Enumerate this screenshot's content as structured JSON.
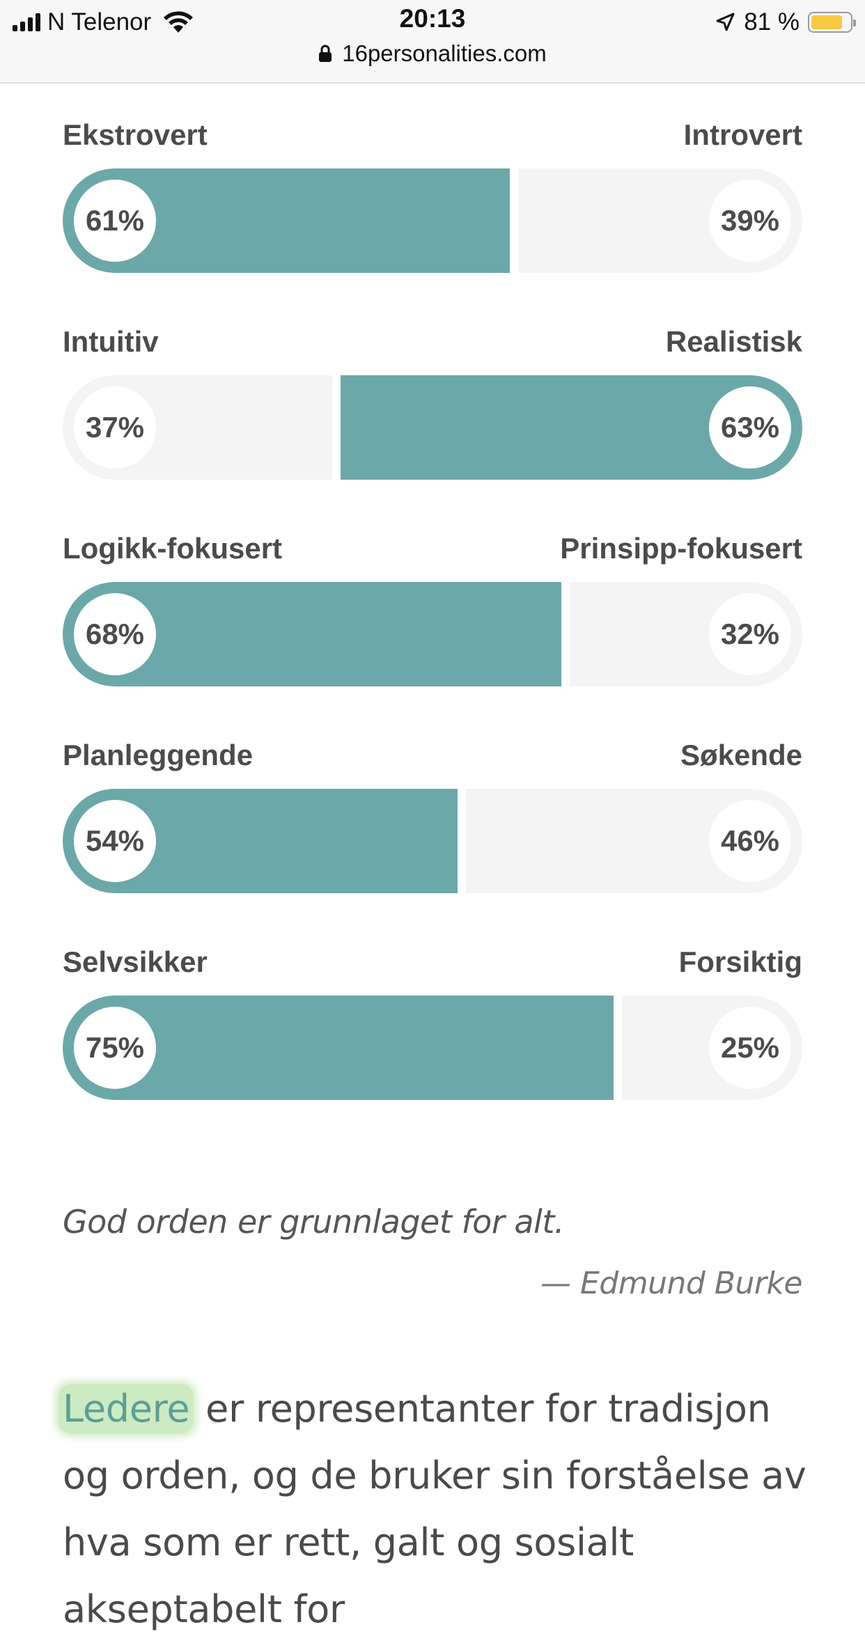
{
  "status_bar": {
    "carrier": "N Telenor",
    "time": "20:13",
    "battery_percent": "81 %",
    "battery_level": 0.81,
    "url": "16personalities.com"
  },
  "colors": {
    "accent": "#6ba8a9",
    "track": "#f4f4f4",
    "highlight": "#cdebc1"
  },
  "traits": [
    {
      "left_label": "Ekstrovert",
      "right_label": "Introvert",
      "left_pct": "61%",
      "right_pct": "39%",
      "dominant": "left",
      "left_value": 61
    },
    {
      "left_label": "Intuitiv",
      "right_label": "Realistisk",
      "left_pct": "37%",
      "right_pct": "63%",
      "dominant": "right",
      "left_value": 37
    },
    {
      "left_label": "Logikk-fokusert",
      "right_label": "Prinsipp-fokusert",
      "left_pct": "68%",
      "right_pct": "32%",
      "dominant": "left",
      "left_value": 68
    },
    {
      "left_label": "Planleggende",
      "right_label": "Søkende",
      "left_pct": "54%",
      "right_pct": "46%",
      "dominant": "left",
      "left_value": 54
    },
    {
      "left_label": "Selvsikker",
      "right_label": "Forsiktig",
      "left_pct": "75%",
      "right_pct": "25%",
      "dominant": "left",
      "left_value": 75
    }
  ],
  "quote": {
    "text": "God orden er grunnlaget for alt.",
    "author": "— Edmund Burke"
  },
  "description": {
    "highlight": "Ledere",
    "rest": " er representanter for tradisjon og orden, og de bruker sin forståelse av hva som er rett, galt og sosialt akseptabelt for"
  }
}
